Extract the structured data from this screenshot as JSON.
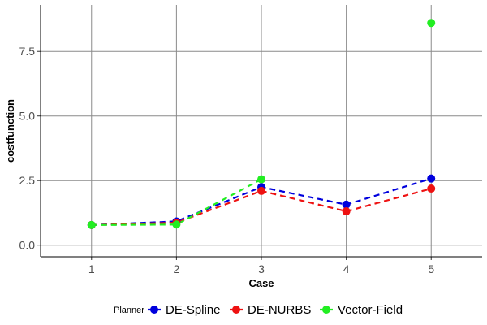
{
  "chart_data": {
    "type": "line",
    "title": "",
    "xlabel": "Case",
    "ylabel": "costfunction",
    "x": [
      1,
      2,
      3,
      4,
      5
    ],
    "xticks": [
      "1",
      "2",
      "3",
      "4",
      "5"
    ],
    "yticks": [
      "0.0",
      "2.5",
      "5.0",
      "7.5"
    ],
    "ylim": [
      -0.45,
      9.3
    ],
    "xlim": [
      0.4,
      5.6
    ],
    "grid": true,
    "legend": {
      "title": "Planner",
      "position": "bottom"
    },
    "series": [
      {
        "name": "DE-Spline",
        "color": "#0000dd",
        "values": [
          0.78,
          0.92,
          2.25,
          1.57,
          2.58
        ]
      },
      {
        "name": "DE-NURBS",
        "color": "#ee1111",
        "values": [
          0.78,
          0.87,
          2.1,
          1.31,
          2.19
        ]
      },
      {
        "name": "Vector-Field",
        "color": "#22ee22",
        "values": [
          0.78,
          0.8,
          2.55,
          null,
          8.6
        ]
      }
    ]
  }
}
